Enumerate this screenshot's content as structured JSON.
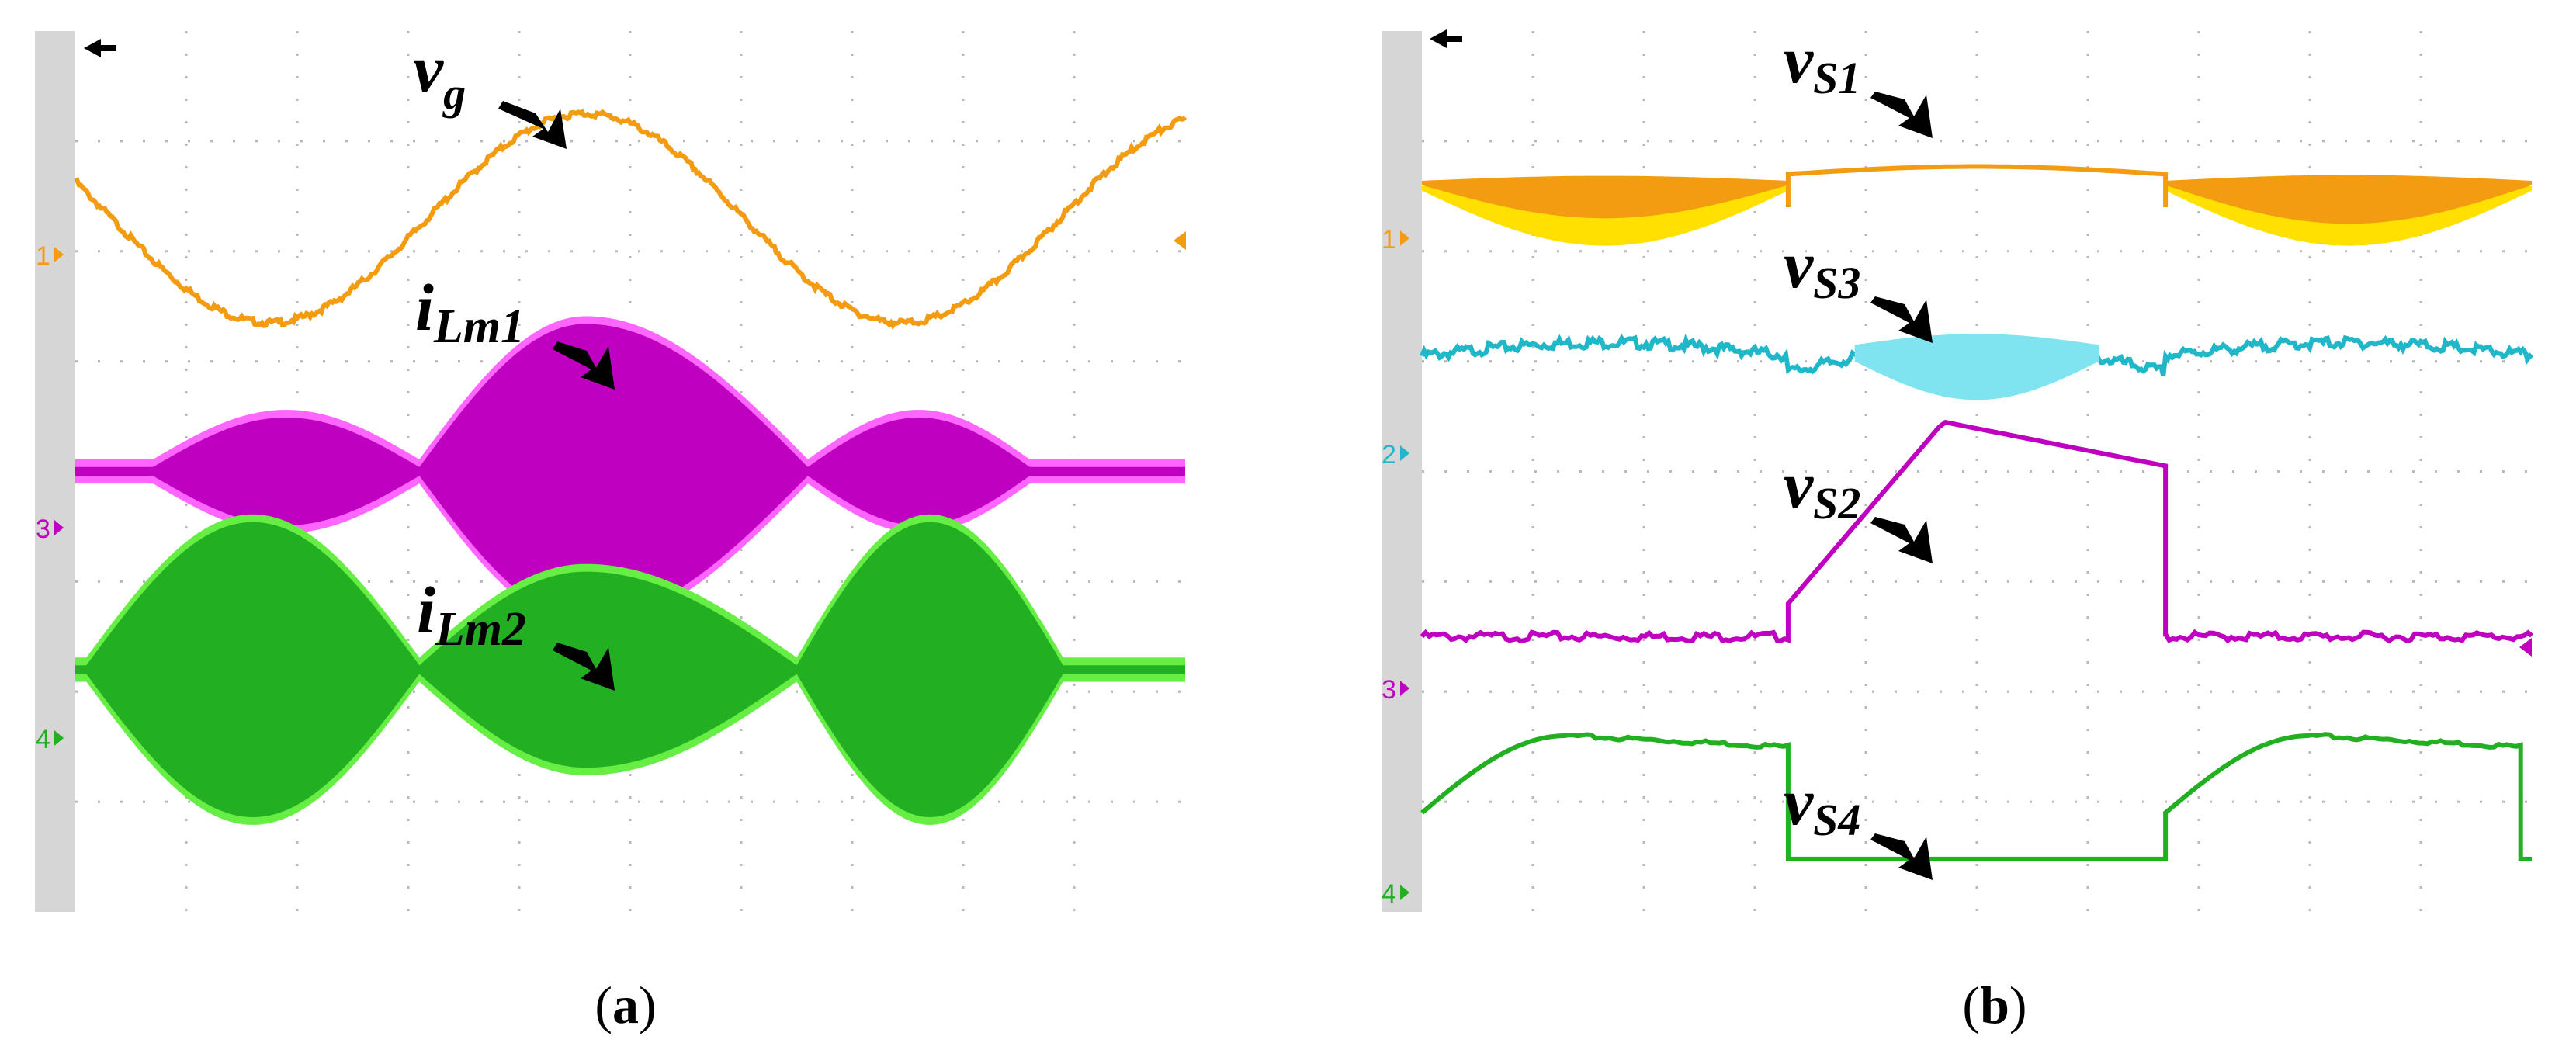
{
  "figure": {
    "panels": [
      {
        "caption_open": "(",
        "caption_letter": "a",
        "caption_close": ")",
        "channel_markers": [
          "1",
          "3",
          "4"
        ],
        "labels": [
          {
            "main": "v",
            "sub": "g"
          },
          {
            "main": "i",
            "sub": "Lm1"
          },
          {
            "main": "i",
            "sub": "Lm2"
          }
        ]
      },
      {
        "caption_open": "(",
        "caption_letter": "b",
        "caption_close": ")",
        "channel_markers": [
          "1",
          "2",
          "3",
          "4"
        ],
        "labels": [
          {
            "main": "v",
            "sub": "S1"
          },
          {
            "main": "v",
            "sub": "S3"
          },
          {
            "main": "v",
            "sub": "S2"
          },
          {
            "main": "v",
            "sub": "S4"
          }
        ]
      }
    ]
  },
  "colors": {
    "ch1": "#f39c12",
    "ch1_light": "#ffe000",
    "ch2": "#20b8c8",
    "ch2_light": "#7fe3f0",
    "ch3": "#c000c0",
    "ch3_light": "#ff66ff",
    "ch4": "#22b022",
    "ch4_light": "#66ee44",
    "grid": "#b8b8b8",
    "side_strip": "#d6d6d6"
  },
  "chart_data": [
    {
      "type": "line",
      "panel": "a",
      "x_divisions": 10,
      "y_divisions": 8,
      "series": [
        {
          "name": "vg",
          "channel": "1",
          "kind": "sine",
          "center_div": 6.3,
          "amplitude_div": 0.95,
          "peak_x_div": 4.6,
          "period_div": 5.7
        },
        {
          "name": "iLm1",
          "channel": "3",
          "kind": "envelope_band",
          "center_div": 4.0,
          "peaks_x_div": [
            1.9,
            4.6,
            7.6
          ],
          "peak_amplitude_div": [
            0.45,
            1.3,
            0.45
          ],
          "null_x_div": [
            3.1,
            6.6
          ]
        },
        {
          "name": "iLm2",
          "channel": "4",
          "kind": "envelope_band",
          "center_div": 2.2,
          "peaks_x_div": [
            1.6,
            4.6,
            7.7
          ],
          "peak_amplitude_div": [
            1.3,
            0.85,
            1.3
          ],
          "null_x_div": [
            3.1,
            6.5
          ]
        }
      ]
    },
    {
      "type": "line",
      "panel": "b",
      "x_divisions": 10,
      "y_divisions": 8,
      "series": [
        {
          "name": "vS1",
          "channel": "1",
          "kind": "segments",
          "center_div": 6.6,
          "high_interval_x_div": [
            3.3,
            6.7
          ]
        },
        {
          "name": "vS3",
          "channel": "2",
          "kind": "segments",
          "center_div": 5.05,
          "active_interval_x_div": [
            3.3,
            6.7
          ]
        },
        {
          "name": "vS2",
          "channel": "3",
          "kind": "segments",
          "center_div": 2.5,
          "high_interval_x_div": [
            3.3,
            6.7
          ],
          "peak_div": 4.45
        },
        {
          "name": "vS4",
          "channel": "4",
          "kind": "segments",
          "center_div": 0.5,
          "low_interval_x_div": [
            3.3,
            6.7
          ],
          "peak_div": 1.6
        }
      ]
    }
  ]
}
